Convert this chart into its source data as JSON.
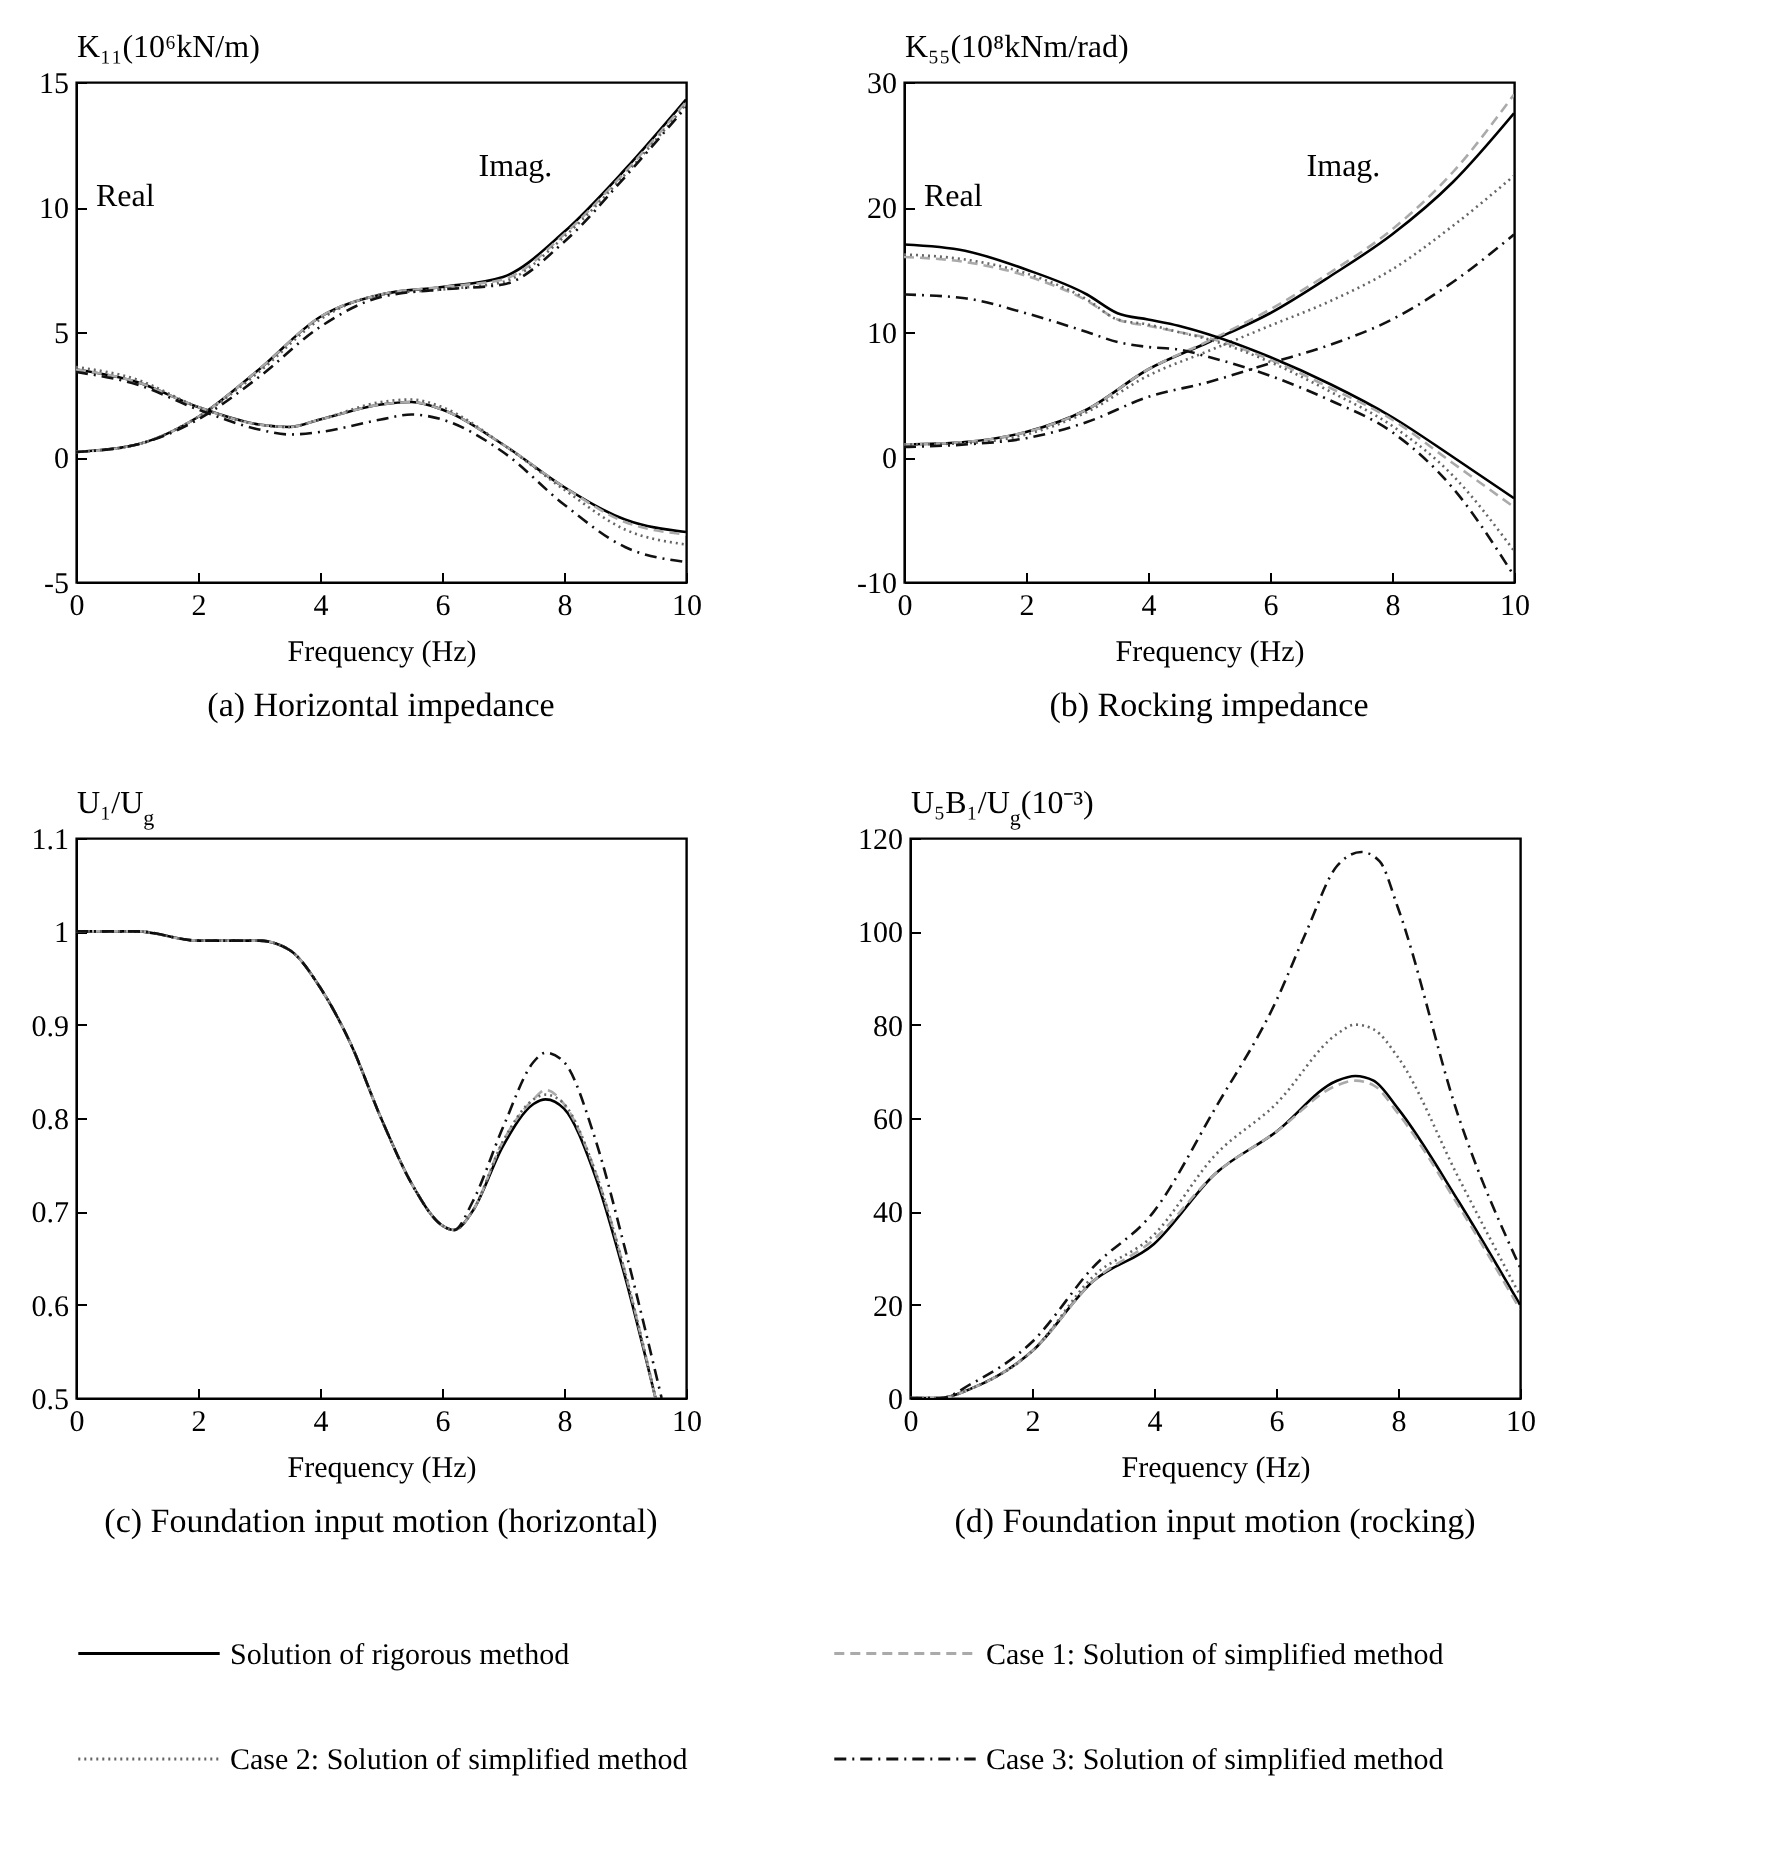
{
  "chart_data": [
    {
      "type": "line",
      "title": "(a) Horizontal impedance",
      "xlabel": "Frequency (Hz)",
      "ylabel": "K₁₁(10⁶kN/m)",
      "xlim": [
        0,
        10
      ],
      "ylim": [
        -5,
        15
      ],
      "xticks": [
        0,
        2,
        4,
        6,
        8,
        10
      ],
      "yticks": [
        -5,
        0,
        5,
        10,
        15
      ],
      "legend": "bottom",
      "annotations": [
        "Real",
        "Imag."
      ],
      "series": [
        {
          "name": "Solution of rigorous method",
          "color": "#000000",
          "line_style": "solid",
          "x": [
            0,
            1,
            2,
            3,
            4,
            5,
            6,
            7,
            8,
            9,
            10
          ],
          "values": [
            0.2,
            0.5,
            1.6,
            3.5,
            5.6,
            6.5,
            6.8,
            7.2,
            9,
            11.5,
            14.3
          ]
        },
        {
          "name": "Case 1: Solution of simplified method",
          "color": "#aaaaaa",
          "line_style": "dashed",
          "x": [
            0,
            1,
            2,
            3,
            4,
            5,
            6,
            7,
            8,
            9,
            10
          ],
          "values": [
            0.2,
            0.5,
            1.6,
            3.5,
            5.6,
            6.5,
            6.8,
            7.1,
            8.9,
            11.4,
            14.2
          ]
        },
        {
          "name": "Case 2: Solution of simplified method",
          "color": "#666666",
          "line_style": "dotted",
          "x": [
            0,
            1,
            2,
            3,
            4,
            5,
            6,
            7,
            8,
            9,
            10
          ],
          "values": [
            0.2,
            0.5,
            1.6,
            3.4,
            5.5,
            6.5,
            6.7,
            7.0,
            8.8,
            11.3,
            14.1
          ]
        },
        {
          "name": "Case 3: Solution of simplified method",
          "color": "#111111",
          "line_style": "dashdot",
          "x": [
            0,
            1,
            2,
            3,
            4,
            5,
            6,
            7,
            8,
            9,
            10
          ],
          "values": [
            0.2,
            0.5,
            1.5,
            3.2,
            5.2,
            6.4,
            6.7,
            6.9,
            8.6,
            11.2,
            14.0
          ]
        },
        {
          "color": "#000000",
          "line_style": "solid",
          "x": [
            0,
            1,
            2,
            3,
            3.5,
            4,
            5,
            5.5,
            6,
            7,
            8,
            9,
            10
          ],
          "values": [
            3.5,
            3.0,
            2.0,
            1.3,
            1.2,
            1.5,
            2.1,
            2.2,
            1.9,
            0.5,
            -1.2,
            -2.5,
            -3.0
          ]
        },
        {
          "color": "#aaaaaa",
          "line_style": "dashed",
          "x": [
            0,
            1,
            2,
            3,
            3.5,
            4,
            5,
            5.5,
            6,
            7,
            8,
            9,
            10
          ],
          "values": [
            3.5,
            3.0,
            2.0,
            1.3,
            1.2,
            1.5,
            2.1,
            2.2,
            1.9,
            0.5,
            -1.2,
            -2.6,
            -3.1
          ]
        },
        {
          "color": "#666666",
          "line_style": "dotted",
          "x": [
            0,
            1,
            2,
            3,
            3.5,
            4,
            5,
            5.5,
            6,
            7,
            8,
            9,
            10
          ],
          "values": [
            3.6,
            3.1,
            2.0,
            1.3,
            1.2,
            1.5,
            2.2,
            2.3,
            2.0,
            0.5,
            -1.3,
            -2.9,
            -3.5
          ]
        },
        {
          "color": "#111111",
          "line_style": "dashdot",
          "x": [
            0,
            1,
            2,
            3,
            3.5,
            4,
            5,
            5.5,
            6,
            7,
            8,
            9,
            10
          ],
          "values": [
            3.4,
            2.9,
            1.9,
            1.1,
            0.9,
            1.0,
            1.5,
            1.7,
            1.5,
            0.2,
            -1.9,
            -3.6,
            -4.2
          ]
        }
      ]
    },
    {
      "type": "line",
      "title": "(b) Rocking impedance",
      "xlabel": "Frequency (Hz)",
      "ylabel": "K₅₅(10⁸kNm/rad)",
      "xlim": [
        0,
        10
      ],
      "ylim": [
        -10,
        30
      ],
      "xticks": [
        0,
        2,
        4,
        6,
        8,
        10
      ],
      "yticks": [
        -10,
        0,
        10,
        20,
        30
      ],
      "annotations": [
        "Real",
        "Imag."
      ],
      "series": [
        {
          "color": "#000000",
          "line_style": "solid",
          "x": [
            0,
            1,
            2,
            3,
            4,
            5,
            6,
            7,
            8,
            9,
            10
          ],
          "values": [
            1,
            1.2,
            2,
            3.8,
            7,
            9.2,
            11.5,
            14.5,
            17.8,
            22,
            27.5
          ]
        },
        {
          "color": "#aaaaaa",
          "line_style": "dashed",
          "x": [
            0,
            1,
            2,
            3,
            4,
            5,
            6,
            7,
            8,
            9,
            10
          ],
          "values": [
            1,
            1.2,
            2,
            3.8,
            7,
            9.3,
            11.8,
            14.8,
            18.2,
            22.8,
            29
          ]
        },
        {
          "color": "#666666",
          "line_style": "dotted",
          "x": [
            0,
            1,
            2,
            3,
            4,
            5,
            6,
            7,
            8,
            9,
            10
          ],
          "values": [
            1,
            1.1,
            1.8,
            3.6,
            6.5,
            8.5,
            10.5,
            12.5,
            15,
            18.5,
            22.5
          ]
        },
        {
          "color": "#111111",
          "line_style": "dashdot",
          "x": [
            0,
            1,
            2,
            3,
            4,
            5,
            6,
            7,
            8,
            9,
            10
          ],
          "values": [
            0.8,
            1,
            1.5,
            2.8,
            4.8,
            6,
            7.5,
            9,
            11,
            14,
            17.8
          ]
        },
        {
          "color": "#000000",
          "line_style": "solid",
          "x": [
            0,
            1,
            2,
            3,
            3.5,
            4,
            4.5,
            5,
            6,
            7,
            8,
            9,
            10
          ],
          "values": [
            17,
            16.5,
            15,
            13,
            11.5,
            11,
            10.5,
            9.8,
            8,
            5.8,
            3.2,
            0,
            -3.3
          ]
        },
        {
          "color": "#aaaaaa",
          "line_style": "dashed",
          "x": [
            0,
            1,
            2,
            3,
            3.5,
            4,
            4.5,
            5,
            6,
            7,
            8,
            9,
            10
          ],
          "values": [
            16,
            15.6,
            14.5,
            12.5,
            11,
            10.5,
            10,
            9.5,
            7.8,
            5.5,
            3,
            -0.5,
            -4
          ]
        },
        {
          "color": "#666666",
          "line_style": "dotted",
          "x": [
            0,
            1,
            2,
            3,
            3.5,
            4,
            4.5,
            5,
            6,
            7,
            8,
            9,
            10
          ],
          "values": [
            16.2,
            15.8,
            14.7,
            12.6,
            11,
            10.6,
            10,
            9.4,
            7.6,
            5.2,
            2.5,
            -1.5,
            -7.5
          ]
        },
        {
          "color": "#111111",
          "line_style": "dashdot",
          "x": [
            0,
            1,
            2,
            3,
            3.5,
            4,
            4.5,
            5,
            6,
            7,
            8,
            9,
            10
          ],
          "values": [
            13,
            12.7,
            11.5,
            10,
            9.2,
            8.8,
            8.6,
            8,
            6.5,
            4.5,
            2,
            -2.5,
            -9.5
          ]
        }
      ]
    },
    {
      "type": "line",
      "title": "(c) Foundation input motion (horizontal)",
      "xlabel": "Frequency (Hz)",
      "ylabel": "U₁/U$_{g}$",
      "xlim": [
        0,
        10
      ],
      "ylim": [
        0.5,
        1.1
      ],
      "xticks": [
        0,
        2,
        4,
        6,
        8,
        10
      ],
      "yticks": [
        0.5,
        0.6,
        0.7,
        0.8,
        0.9,
        1,
        1.1
      ],
      "series": [
        {
          "color": "#000000",
          "line_style": "solid",
          "x": [
            0,
            1,
            2,
            2.5,
            3,
            3.5,
            4,
            4.5,
            5,
            5.5,
            6,
            6.2,
            6.5,
            7,
            7.5,
            7.7,
            8,
            8.5,
            9,
            9.5
          ],
          "values": [
            1.0,
            1.0,
            0.99,
            0.99,
            0.99,
            0.98,
            0.94,
            0.88,
            0.8,
            0.73,
            0.685,
            0.68,
            0.7,
            0.77,
            0.815,
            0.82,
            0.81,
            0.74,
            0.63,
            0.5
          ]
        },
        {
          "color": "#aaaaaa",
          "line_style": "dashed",
          "x": [
            0,
            1,
            2,
            2.5,
            3,
            3.5,
            4,
            4.5,
            5,
            5.5,
            6,
            6.2,
            6.5,
            7,
            7.5,
            7.7,
            8,
            8.5,
            9,
            9.5
          ],
          "values": [
            1.0,
            1.0,
            0.99,
            0.99,
            0.99,
            0.98,
            0.94,
            0.88,
            0.8,
            0.73,
            0.685,
            0.68,
            0.7,
            0.775,
            0.82,
            0.83,
            0.815,
            0.745,
            0.635,
            0.5
          ]
        },
        {
          "color": "#666666",
          "line_style": "dotted",
          "x": [
            0,
            1,
            2,
            2.5,
            3,
            3.5,
            4,
            4.5,
            5,
            5.5,
            6,
            6.2,
            6.5,
            7,
            7.5,
            7.7,
            8,
            8.5,
            9,
            9.5
          ],
          "values": [
            1.0,
            1.0,
            0.99,
            0.99,
            0.99,
            0.98,
            0.94,
            0.88,
            0.8,
            0.73,
            0.685,
            0.68,
            0.7,
            0.775,
            0.82,
            0.825,
            0.815,
            0.745,
            0.635,
            0.5
          ]
        },
        {
          "color": "#111111",
          "line_style": "dashdot",
          "x": [
            0,
            1,
            2,
            2.5,
            3,
            3.5,
            4,
            4.5,
            5,
            5.5,
            6,
            6.2,
            6.5,
            7,
            7.5,
            7.7,
            8,
            8.5,
            9,
            9.6
          ],
          "values": [
            1.0,
            1.0,
            0.99,
            0.99,
            0.99,
            0.98,
            0.94,
            0.88,
            0.8,
            0.73,
            0.685,
            0.68,
            0.71,
            0.79,
            0.86,
            0.87,
            0.86,
            0.78,
            0.66,
            0.5
          ]
        }
      ]
    },
    {
      "type": "line",
      "title": "(d) Foundation input motion (rocking)",
      "xlabel": "Frequency (Hz)",
      "ylabel": "U₅B₁/U$_{g}$(10⁻³)",
      "xlim": [
        0,
        10
      ],
      "ylim": [
        0,
        120
      ],
      "xticks": [
        0,
        2,
        4,
        6,
        8,
        10
      ],
      "yticks": [
        0,
        20,
        40,
        60,
        80,
        100,
        120
      ],
      "series": [
        {
          "color": "#000000",
          "line_style": "solid",
          "x": [
            0,
            0.5,
            1,
            2,
            3,
            4,
            5,
            6,
            7,
            7.3,
            7.6,
            8,
            9,
            10
          ],
          "values": [
            0,
            0,
            2,
            10,
            25,
            33,
            48,
            57,
            68,
            69,
            68,
            62,
            42,
            20
          ]
        },
        {
          "color": "#aaaaaa",
          "line_style": "dashed",
          "x": [
            0,
            0.5,
            1,
            2,
            3,
            4,
            5,
            6,
            7,
            7.3,
            7.6,
            8,
            9,
            10
          ],
          "values": [
            0,
            0,
            2,
            10,
            25,
            34,
            48,
            57,
            67,
            68,
            67,
            61,
            41,
            19
          ]
        },
        {
          "color": "#666666",
          "line_style": "dotted",
          "x": [
            0,
            0.5,
            1,
            2,
            3,
            4,
            5,
            6,
            7,
            7.3,
            7.6,
            8,
            9,
            10
          ],
          "values": [
            0,
            0,
            2,
            10,
            26,
            35,
            52,
            63,
            78,
            80,
            79,
            73,
            47,
            22
          ]
        },
        {
          "color": "#111111",
          "line_style": "dashdot",
          "x": [
            0,
            0.5,
            1,
            2,
            3,
            4,
            5,
            6,
            6.5,
            7,
            7.4,
            7.7,
            8,
            9,
            10
          ],
          "values": [
            0,
            0,
            3,
            12,
            28,
            40,
            62,
            85,
            100,
            114,
            117,
            115,
            105,
            60,
            28
          ]
        }
      ]
    }
  ]
}
